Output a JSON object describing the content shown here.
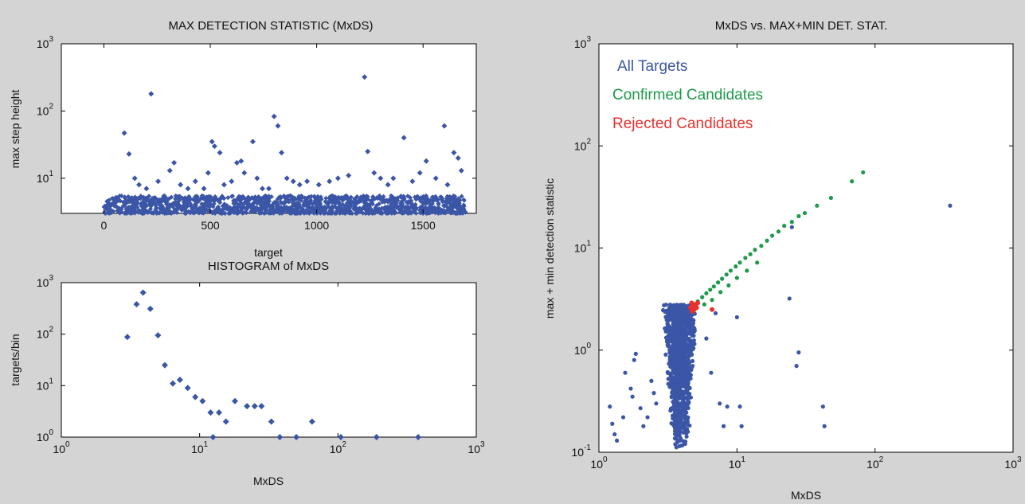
{
  "colors": {
    "all_targets": "#3b56a6",
    "confirmed": "#1e9a4a",
    "rejected": "#e8302c",
    "background": "#d4d4d4",
    "axes_bg": "#ffffff"
  },
  "chart_data": [
    {
      "id": "mxds_vs_target",
      "type": "scatter",
      "title": "MAX DETECTION STATISTIC (MxDS)",
      "xlabel": "target",
      "ylabel": "max step height",
      "x_scale": "linear",
      "y_scale": "log",
      "xlim": [
        -200,
        1750
      ],
      "ylim": [
        3,
        1000
      ],
      "x_ticks": [
        0,
        500,
        1000,
        1500
      ],
      "y_ticks": [
        {
          "base": "10",
          "exp": "1"
        },
        {
          "base": "10",
          "exp": "2"
        },
        {
          "base": "10",
          "exp": "3"
        }
      ],
      "baseline_band": {
        "x_range": [
          0,
          1700
        ],
        "y_range": [
          3,
          5.5
        ],
        "description": "dense cluster of ~1700 targets"
      },
      "series": [
        {
          "color": "#3b56a6",
          "points": [
            [
              96,
              47
            ],
            [
              118,
              23
            ],
            [
              145,
              10
            ],
            [
              165,
              8
            ],
            [
              200,
              7
            ],
            [
              222,
              180
            ],
            [
              255,
              9
            ],
            [
              310,
              13
            ],
            [
              330,
              17
            ],
            [
              360,
              8
            ],
            [
              395,
              7
            ],
            [
              430,
              9
            ],
            [
              470,
              7
            ],
            [
              490,
              12
            ],
            [
              508,
              35
            ],
            [
              520,
              30
            ],
            [
              545,
              24
            ],
            [
              565,
              8
            ],
            [
              600,
              9
            ],
            [
              625,
              17
            ],
            [
              645,
              18
            ],
            [
              660,
              12
            ],
            [
              700,
              35
            ],
            [
              720,
              10
            ],
            [
              745,
              7
            ],
            [
              775,
              7
            ],
            [
              800,
              83
            ],
            [
              818,
              60
            ],
            [
              835,
              24
            ],
            [
              860,
              10
            ],
            [
              890,
              9
            ],
            [
              920,
              8
            ],
            [
              955,
              9
            ],
            [
              1010,
              8
            ],
            [
              1060,
              9
            ],
            [
              1100,
              10
            ],
            [
              1150,
              11
            ],
            [
              1225,
              320
            ],
            [
              1240,
              25
            ],
            [
              1270,
              12
            ],
            [
              1300,
              10
            ],
            [
              1335,
              8
            ],
            [
              1360,
              10
            ],
            [
              1410,
              40
            ],
            [
              1450,
              9
            ],
            [
              1485,
              12
            ],
            [
              1515,
              18
            ],
            [
              1560,
              10
            ],
            [
              1600,
              60
            ],
            [
              1615,
              8
            ],
            [
              1645,
              24
            ],
            [
              1665,
              20
            ],
            [
              1680,
              13
            ]
          ]
        }
      ]
    },
    {
      "id": "histogram_mxds",
      "type": "scatter",
      "title": "HISTOGRAM of MxDS",
      "xlabel": "MxDS",
      "ylabel": "targets/bin",
      "x_scale": "log",
      "y_scale": "log",
      "xlim": [
        1,
        1000
      ],
      "ylim": [
        1,
        1000
      ],
      "x_ticks": [
        {
          "base": "10",
          "exp": "0"
        },
        {
          "base": "10",
          "exp": "1"
        },
        {
          "base": "10",
          "exp": "2"
        },
        {
          "base": "10",
          "exp": "3"
        }
      ],
      "y_ticks": [
        {
          "base": "10",
          "exp": "0"
        },
        {
          "base": "10",
          "exp": "1"
        },
        {
          "base": "10",
          "exp": "2"
        },
        {
          "base": "10",
          "exp": "3"
        }
      ],
      "series": [
        {
          "color": "#3b56a6",
          "points": [
            [
              3.0,
              88
            ],
            [
              3.5,
              380
            ],
            [
              3.9,
              640
            ],
            [
              4.4,
              310
            ],
            [
              5.0,
              95
            ],
            [
              5.6,
              25
            ],
            [
              6.4,
              11
            ],
            [
              7.2,
              13
            ],
            [
              8.2,
              9
            ],
            [
              9.3,
              6
            ],
            [
              10.5,
              5
            ],
            [
              12.0,
              3
            ],
            [
              12.5,
              1
            ],
            [
              13.8,
              3
            ],
            [
              15.5,
              2
            ],
            [
              18.0,
              5
            ],
            [
              22.0,
              4
            ],
            [
              25.0,
              4
            ],
            [
              28.0,
              4
            ],
            [
              33.0,
              2
            ],
            [
              38.0,
              1
            ],
            [
              50.0,
              1
            ],
            [
              65.0,
              2
            ],
            [
              105.0,
              1
            ],
            [
              190.0,
              1
            ],
            [
              380.0,
              1
            ]
          ]
        }
      ]
    },
    {
      "id": "mxds_vs_maxmin",
      "type": "scatter",
      "title": "MxDS vs. MAX+MIN DET. STAT.",
      "xlabel": "MxDS",
      "ylabel": "max + min detection statistic",
      "x_scale": "log",
      "y_scale": "log",
      "xlim": [
        1,
        1000
      ],
      "ylim": [
        0.1,
        1000
      ],
      "x_ticks": [
        {
          "base": "10",
          "exp": "0"
        },
        {
          "base": "10",
          "exp": "1"
        },
        {
          "base": "10",
          "exp": "2"
        },
        {
          "base": "10",
          "exp": "3"
        }
      ],
      "y_ticks": [
        {
          "base": "10",
          "exp": "-1"
        },
        {
          "base": "10",
          "exp": "0"
        },
        {
          "base": "10",
          "exp": "1"
        },
        {
          "base": "10",
          "exp": "2"
        },
        {
          "base": "10",
          "exp": "3"
        }
      ],
      "legend_position": "top-left",
      "series": [
        {
          "name": "All Targets",
          "color": "#3b56a6",
          "cluster": {
            "x_range": [
              3.0,
              5.0
            ],
            "y_range": [
              0.1,
              2.8
            ]
          },
          "points": [
            [
              1.2,
              0.28
            ],
            [
              1.25,
              0.19
            ],
            [
              1.3,
              0.15
            ],
            [
              1.35,
              0.13
            ],
            [
              1.5,
              0.22
            ],
            [
              1.55,
              0.6
            ],
            [
              1.7,
              0.42
            ],
            [
              1.75,
              0.35
            ],
            [
              1.8,
              0.8
            ],
            [
              1.85,
              0.92
            ],
            [
              2.0,
              0.27
            ],
            [
              2.1,
              0.18
            ],
            [
              2.25,
              0.22
            ],
            [
              2.4,
              0.5
            ],
            [
              2.5,
              0.38
            ],
            [
              2.6,
              0.3
            ],
            [
              6.0,
              1.3
            ],
            [
              6.5,
              0.6
            ],
            [
              7.0,
              2.3
            ],
            [
              7.5,
              0.3
            ],
            [
              8.0,
              0.18
            ],
            [
              8.5,
              0.28
            ],
            [
              10.0,
              2.1
            ],
            [
              10.5,
              0.28
            ],
            [
              10.8,
              0.18
            ],
            [
              24.0,
              3.2
            ],
            [
              27.0,
              0.7
            ],
            [
              28.0,
              0.95
            ],
            [
              42.0,
              0.28
            ],
            [
              43.0,
              0.18
            ],
            [
              25.0,
              16
            ],
            [
              350.0,
              26
            ]
          ]
        },
        {
          "name": "Confirmed Candidates",
          "color": "#1e9a4a",
          "points": [
            [
              5.2,
              3.0
            ],
            [
              5.6,
              3.3
            ],
            [
              6.0,
              3.6
            ],
            [
              6.4,
              3.9
            ],
            [
              6.8,
              4.2
            ],
            [
              7.3,
              4.6
            ],
            [
              7.8,
              5.0
            ],
            [
              8.4,
              5.5
            ],
            [
              9.0,
              6.0
            ],
            [
              9.8,
              6.6
            ],
            [
              10.5,
              7.2
            ],
            [
              11.5,
              8.0
            ],
            [
              12.5,
              8.7
            ],
            [
              13.5,
              9.6
            ],
            [
              15.0,
              10.5
            ],
            [
              16.5,
              11.8
            ],
            [
              18.0,
              13.2
            ],
            [
              20.0,
              14.5
            ],
            [
              22.0,
              16.5
            ],
            [
              25.0,
              18.0
            ],
            [
              28.0,
              20.5
            ],
            [
              31.0,
              22.0
            ],
            [
              38.0,
              26.0
            ],
            [
              48.0,
              31.0
            ],
            [
              68.0,
              45.0
            ],
            [
              82.0,
              55.0
            ],
            [
              5.8,
              2.8
            ],
            [
              6.6,
              3.1
            ],
            [
              7.6,
              3.7
            ],
            [
              8.7,
              4.3
            ],
            [
              10.0,
              5.1
            ],
            [
              11.8,
              6.0
            ],
            [
              14.0,
              7.2
            ]
          ]
        },
        {
          "name": "Rejected Candidates",
          "color": "#e8302c",
          "points": [
            [
              4.6,
              2.6
            ],
            [
              4.7,
              2.9
            ],
            [
              4.8,
              2.7
            ],
            [
              4.9,
              2.5
            ],
            [
              5.0,
              2.8
            ],
            [
              5.1,
              2.6
            ],
            [
              4.75,
              2.4
            ],
            [
              5.2,
              2.9
            ],
            [
              6.6,
              2.5
            ]
          ]
        }
      ]
    }
  ]
}
